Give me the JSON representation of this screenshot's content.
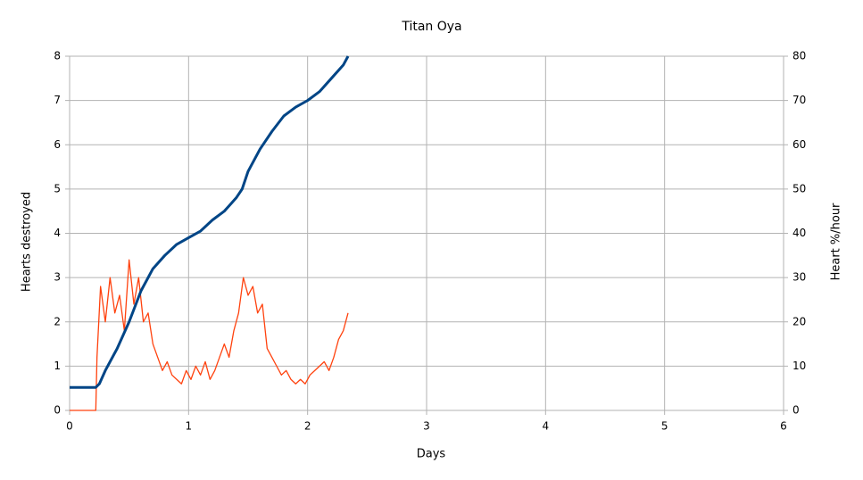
{
  "chart_data": {
    "type": "line",
    "title": "Titan Oya",
    "x_label": "Days",
    "y_label": "Hearts destroyed",
    "y2_label": "Heart %/hour",
    "xlim": [
      0,
      6
    ],
    "xticks": [
      0,
      1,
      2,
      3,
      4,
      5,
      6
    ],
    "ylim": [
      0,
      8
    ],
    "yticks": [
      0,
      1,
      2,
      3,
      4,
      5,
      6,
      7,
      8
    ],
    "y2lim": [
      0,
      80
    ],
    "y2ticks": [
      0,
      10,
      20,
      30,
      40,
      50,
      60,
      70,
      80
    ],
    "grid": true,
    "series": [
      {
        "color": "#004586",
        "width": 3,
        "x": [
          0,
          0.22,
          0.25,
          0.3,
          0.4,
          0.5,
          0.6,
          0.7,
          0.8,
          0.9,
          1,
          1.1,
          1.2,
          1.3,
          1.4,
          1.45,
          1.5,
          1.6,
          1.7,
          1.8,
          1.9,
          2,
          2.1,
          2.2,
          2.3,
          2.34
        ],
        "values": [
          0.52,
          0.52,
          0.6,
          0.9,
          1.4,
          2.0,
          2.7,
          3.2,
          3.5,
          3.75,
          3.9,
          4.05,
          4.3,
          4.5,
          4.8,
          5.0,
          5.4,
          5.9,
          6.3,
          6.65,
          6.85,
          7.0,
          7.2,
          7.5,
          7.8,
          8.0
        ]
      },
      {
        "color": "#ff420e",
        "width": 1.3,
        "axis": "y2",
        "x": [
          0,
          0.22,
          0.23,
          0.26,
          0.3,
          0.34,
          0.38,
          0.42,
          0.46,
          0.5,
          0.54,
          0.58,
          0.62,
          0.66,
          0.7,
          0.74,
          0.78,
          0.82,
          0.86,
          0.9,
          0.94,
          0.98,
          1.02,
          1.06,
          1.1,
          1.14,
          1.18,
          1.22,
          1.26,
          1.3,
          1.34,
          1.38,
          1.42,
          1.46,
          1.5,
          1.54,
          1.58,
          1.62,
          1.66,
          1.7,
          1.74,
          1.78,
          1.82,
          1.86,
          1.9,
          1.94,
          1.98,
          2.02,
          2.06,
          2.1,
          2.14,
          2.18,
          2.22,
          2.26,
          2.3,
          2.34
        ],
        "values": [
          0,
          0,
          12,
          28,
          20,
          30,
          22,
          26,
          18,
          34,
          24,
          30,
          20,
          22,
          15,
          12,
          9,
          11,
          8,
          7,
          6,
          9,
          7,
          10,
          8,
          11,
          7,
          9,
          12,
          15,
          12,
          18,
          22,
          30,
          26,
          28,
          22,
          24,
          14,
          12,
          10,
          8,
          9,
          7,
          6,
          7,
          6,
          8,
          9,
          10,
          11,
          9,
          12,
          16,
          18,
          22
        ]
      }
    ]
  }
}
